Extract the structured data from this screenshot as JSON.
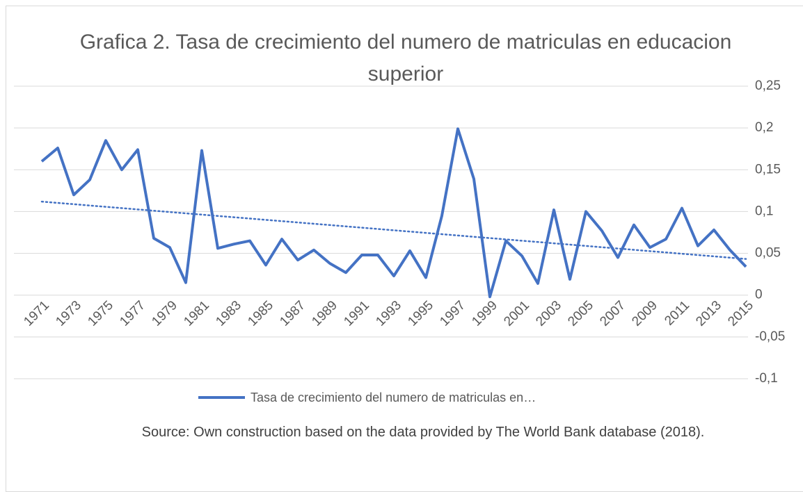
{
  "chart_data": {
    "type": "line",
    "title": "Grafica 2. Tasa de crecimiento del numero de matriculas en educacion superior",
    "source": "Source: Own construction based on the data provided by The World Bank database (2018).",
    "categories": [
      "1971",
      null,
      "1973",
      null,
      "1975",
      null,
      "1977",
      null,
      "1979",
      null,
      "1981",
      null,
      "1983",
      null,
      "1985",
      null,
      "1987",
      null,
      "1989",
      null,
      "1991",
      null,
      "1993",
      null,
      "1995",
      null,
      "1997",
      null,
      "1999",
      null,
      "2001",
      null,
      "2003",
      null,
      "2005",
      null,
      "2007",
      null,
      "2009",
      null,
      "2011",
      null,
      "2013",
      null,
      "2015"
    ],
    "series": [
      {
        "name": "Tasa de crecimiento del numero de matriculas en…",
        "color": "#4472c4",
        "values": [
          0.16,
          0.176,
          0.12,
          0.138,
          0.185,
          0.15,
          0.174,
          0.068,
          0.057,
          0.015,
          0.173,
          0.056,
          0.061,
          0.065,
          0.036,
          0.067,
          0.042,
          0.054,
          0.038,
          0.027,
          0.048,
          0.048,
          0.023,
          0.053,
          0.021,
          0.095,
          0.199,
          0.139,
          -0.002,
          0.065,
          0.047,
          0.014,
          0.102,
          0.019,
          0.1,
          0.077,
          0.045,
          0.084,
          0.057,
          0.067,
          0.104,
          0.059,
          0.078,
          0.054,
          0.034
        ]
      }
    ],
    "trendline": true,
    "ylim": [
      -0.1,
      0.25
    ],
    "yticks": [
      {
        "value": -0.1,
        "label": "-0,1"
      },
      {
        "value": -0.05,
        "label": "-0,05"
      },
      0,
      {
        "value": 0.05,
        "label": "0,05"
      },
      {
        "value": 0.1,
        "label": "0,1"
      },
      {
        "value": 0.15,
        "label": "0,15"
      },
      {
        "value": 0.2,
        "label": "0,2"
      },
      {
        "value": 0.25,
        "label": "0,25"
      }
    ],
    "grid": true,
    "legend": "bottom"
  }
}
